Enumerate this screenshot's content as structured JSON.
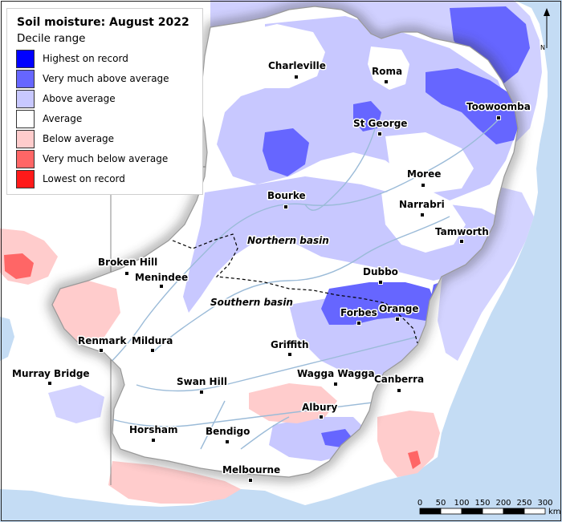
{
  "legend": {
    "title": "Soil moisture: August 2022",
    "subtitle": "Decile range",
    "items": [
      {
        "label": "Highest on record",
        "color": "#0000ff"
      },
      {
        "label": "Very much above average",
        "color": "#6666ff"
      },
      {
        "label": "Above average",
        "color": "#c8c8ff"
      },
      {
        "label": "Average",
        "color": "#ffffff"
      },
      {
        "label": "Below average",
        "color": "#ffcccc"
      },
      {
        "label": "Very much below average",
        "color": "#ff6666"
      },
      {
        "label": "Lowest on record",
        "color": "#ff1a1a"
      }
    ]
  },
  "map": {
    "ocean_color": "#c4dcf4",
    "outside_color": "#ffffff",
    "river_color": "#9bbbd8",
    "basins": [
      "Northern basin",
      "Southern basin"
    ],
    "cities": [
      {
        "name": "Charleville"
      },
      {
        "name": "Roma"
      },
      {
        "name": "Toowoomba"
      },
      {
        "name": "St George"
      },
      {
        "name": "Moree"
      },
      {
        "name": "Bourke"
      },
      {
        "name": "Narrabri"
      },
      {
        "name": "Tamworth"
      },
      {
        "name": "Broken Hill"
      },
      {
        "name": "Menindee"
      },
      {
        "name": "Dubbo"
      },
      {
        "name": "Forbes"
      },
      {
        "name": "Orange"
      },
      {
        "name": "Renmark"
      },
      {
        "name": "Mildura"
      },
      {
        "name": "Griffith"
      },
      {
        "name": "Murray Bridge"
      },
      {
        "name": "Wagga Wagga"
      },
      {
        "name": "Canberra"
      },
      {
        "name": "Swan Hill"
      },
      {
        "name": "Albury"
      },
      {
        "name": "Horsham"
      },
      {
        "name": "Bendigo"
      },
      {
        "name": "Melbourne"
      }
    ]
  },
  "scale_bar": {
    "ticks": [
      "0",
      "50",
      "100",
      "150",
      "200",
      "250",
      "300"
    ],
    "unit": "km"
  },
  "north_arrow": {
    "label": "N"
  }
}
